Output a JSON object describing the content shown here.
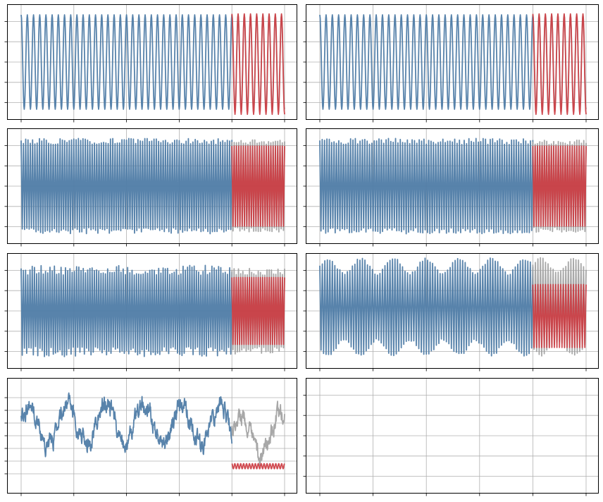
{
  "figure": {
    "colors": {
      "history": "#4f7ca6",
      "actual": "#9e9e9e",
      "forecast": "#cc3a40",
      "grid": "#b0b0b0",
      "frame": "#000000"
    },
    "xlim": [
      0,
      1000
    ],
    "split_at": 800,
    "xticks": [
      0,
      200,
      400,
      600,
      800,
      1000
    ]
  },
  "chart_data": [
    {
      "type": "line",
      "title": "",
      "xlabel": "",
      "ylabel": "",
      "grid": true,
      "xlim": [
        0,
        1000
      ],
      "ylim": [
        -1,
        1
      ],
      "yticks": [
        -0.8,
        -0.4,
        0,
        0.4,
        0.8
      ],
      "series": [
        {
          "role": "history",
          "x_range": [
            0,
            800
          ],
          "pattern": "sine",
          "cycles": 34,
          "amplitude": 0.93,
          "center": 0
        },
        {
          "role": "actual",
          "x_range": [
            800,
            1000
          ],
          "pattern": "sine",
          "cycles": 8.5,
          "amplitude": 0.93,
          "center": 0
        },
        {
          "role": "forecast",
          "x_range": [
            800,
            1000
          ],
          "pattern": "sine",
          "cycles": 8.5,
          "amplitude": 0.99,
          "center": -0.04
        }
      ]
    },
    {
      "type": "line",
      "title": "",
      "xlabel": "",
      "ylabel": "",
      "grid": true,
      "xlim": [
        0,
        1000
      ],
      "ylim": [
        -1,
        1
      ],
      "yticks": [
        -0.8,
        -0.4,
        0,
        0.4,
        0.8
      ],
      "series": [
        {
          "role": "history",
          "x_range": [
            0,
            800
          ],
          "pattern": "sine",
          "cycles": 34,
          "amplitude": 0.93,
          "center": 0
        },
        {
          "role": "actual",
          "x_range": [
            800,
            1000
          ],
          "pattern": "sine",
          "cycles": 8.5,
          "amplitude": 0.93,
          "center": 0
        },
        {
          "role": "forecast",
          "x_range": [
            800,
            1000
          ],
          "pattern": "sine",
          "cycles": 8.5,
          "amplitude": 0.99,
          "center": -0.04
        }
      ]
    },
    {
      "type": "line",
      "title": "",
      "xlabel": "",
      "ylabel": "",
      "grid": true,
      "xlim": [
        0,
        1000
      ],
      "ylim": [
        -1,
        1
      ],
      "yticks": [
        -0.8,
        -0.4,
        0,
        0.4,
        0.8
      ],
      "series": [
        {
          "role": "history",
          "x_range": [
            0,
            800
          ],
          "pattern": "dense",
          "cycles": 92,
          "amplitude": 0.88,
          "jitter": 0.06,
          "center": 0
        },
        {
          "role": "actual",
          "x_range": [
            800,
            1000
          ],
          "pattern": "dense",
          "cycles": 23,
          "amplitude": 0.86,
          "jitter": 0.05,
          "center": 0
        },
        {
          "role": "forecast",
          "x_range": [
            800,
            1000
          ],
          "pattern": "dense",
          "cycles": 23,
          "amplitude": 0.79,
          "jitter": 0.0,
          "center": 0
        }
      ]
    },
    {
      "type": "line",
      "title": "",
      "xlabel": "",
      "ylabel": "",
      "grid": true,
      "xlim": [
        0,
        1000
      ],
      "ylim": [
        -1,
        1
      ],
      "yticks": [
        -0.8,
        -0.4,
        0,
        0.4,
        0.8
      ],
      "series": [
        {
          "role": "history",
          "x_range": [
            0,
            800
          ],
          "pattern": "dense",
          "cycles": 90,
          "amplitude": 0.88,
          "jitter": 0.06,
          "center": 0
        },
        {
          "role": "actual",
          "x_range": [
            800,
            1000
          ],
          "pattern": "dense",
          "cycles": 23,
          "amplitude": 0.86,
          "jitter": 0.05,
          "center": 0
        },
        {
          "role": "forecast",
          "x_range": [
            800,
            1000
          ],
          "pattern": "dense",
          "cycles": 23,
          "amplitude": 0.79,
          "jitter": 0.0,
          "center": 0
        }
      ]
    },
    {
      "type": "line",
      "title": "",
      "xlabel": "",
      "ylabel": "",
      "grid": true,
      "xlim": [
        0,
        1000
      ],
      "ylim": [
        -1,
        1
      ],
      "yticks": [
        -0.8,
        -0.4,
        0,
        0.4,
        0.8
      ],
      "series": [
        {
          "role": "history",
          "x_range": [
            0,
            800
          ],
          "pattern": "dense",
          "cycles": 95,
          "amplitude": 0.8,
          "jitter": 0.1,
          "center": 0
        },
        {
          "role": "actual",
          "x_range": [
            800,
            1000
          ],
          "pattern": "dense",
          "cycles": 24,
          "amplitude": 0.78,
          "jitter": 0.08,
          "center": 0
        },
        {
          "role": "forecast",
          "x_range": [
            800,
            1000
          ],
          "pattern": "dense",
          "cycles": 24,
          "amplitude": 0.66,
          "jitter": 0.0,
          "center": 0
        }
      ]
    },
    {
      "type": "line",
      "title": "",
      "xlabel": "",
      "ylabel": "",
      "grid": true,
      "xlim": [
        0,
        1000
      ],
      "ylim": [
        -1,
        1
      ],
      "yticks": [
        -0.8,
        -0.4,
        0,
        0.4,
        0.8
      ],
      "series": [
        {
          "role": "history",
          "x_range": [
            0,
            800
          ],
          "pattern": "envelope",
          "cycles": 85,
          "amplitude": 0.8,
          "center": 0.08,
          "env_cycles": 6.5,
          "env_depth": 0.18
        },
        {
          "role": "actual",
          "x_range": [
            800,
            1000
          ],
          "pattern": "envelope",
          "cycles": 21,
          "amplitude": 0.82,
          "center": 0.08,
          "env_cycles": 1.6,
          "env_depth": 0.15
        },
        {
          "role": "forecast",
          "x_range": [
            800,
            1000
          ],
          "pattern": "dense",
          "cycles": 21,
          "amplitude": 0.62,
          "jitter": 0.0,
          "center": -0.1
        }
      ]
    },
    {
      "type": "line",
      "title": "",
      "xlabel": "",
      "ylabel": "",
      "grid": true,
      "xlim": [
        0,
        1000
      ],
      "ylim": [
        -1,
        1
      ],
      "yticks": [
        -0.75,
        -0.5,
        -0.25,
        0,
        0.25,
        0.5,
        0.75
      ],
      "series": [
        {
          "role": "history",
          "x_range": [
            0,
            800
          ],
          "pattern": "noisy-wave",
          "cycles": 5.5,
          "amplitude": 0.4,
          "noise": 0.13,
          "center": 0.22
        },
        {
          "role": "actual",
          "x_range": [
            800,
            1000
          ],
          "pattern": "noisy-wave",
          "cycles": 1.3,
          "amplitude": 0.4,
          "noise": 0.13,
          "center": 0.02
        },
        {
          "role": "forecast",
          "x_range": [
            800,
            1000
          ],
          "pattern": "sine",
          "cycles": 18,
          "amplitude": 0.05,
          "center": -0.6
        }
      ]
    },
    {
      "type": "line",
      "title": "",
      "xlabel": "",
      "ylabel": "",
      "grid": true,
      "empty": true,
      "xlim": [
        0,
        1000
      ],
      "ylim": [
        -1,
        1
      ],
      "yticks": [
        -0.8,
        -0.4,
        0,
        0.4,
        0.8
      ],
      "series": []
    }
  ]
}
